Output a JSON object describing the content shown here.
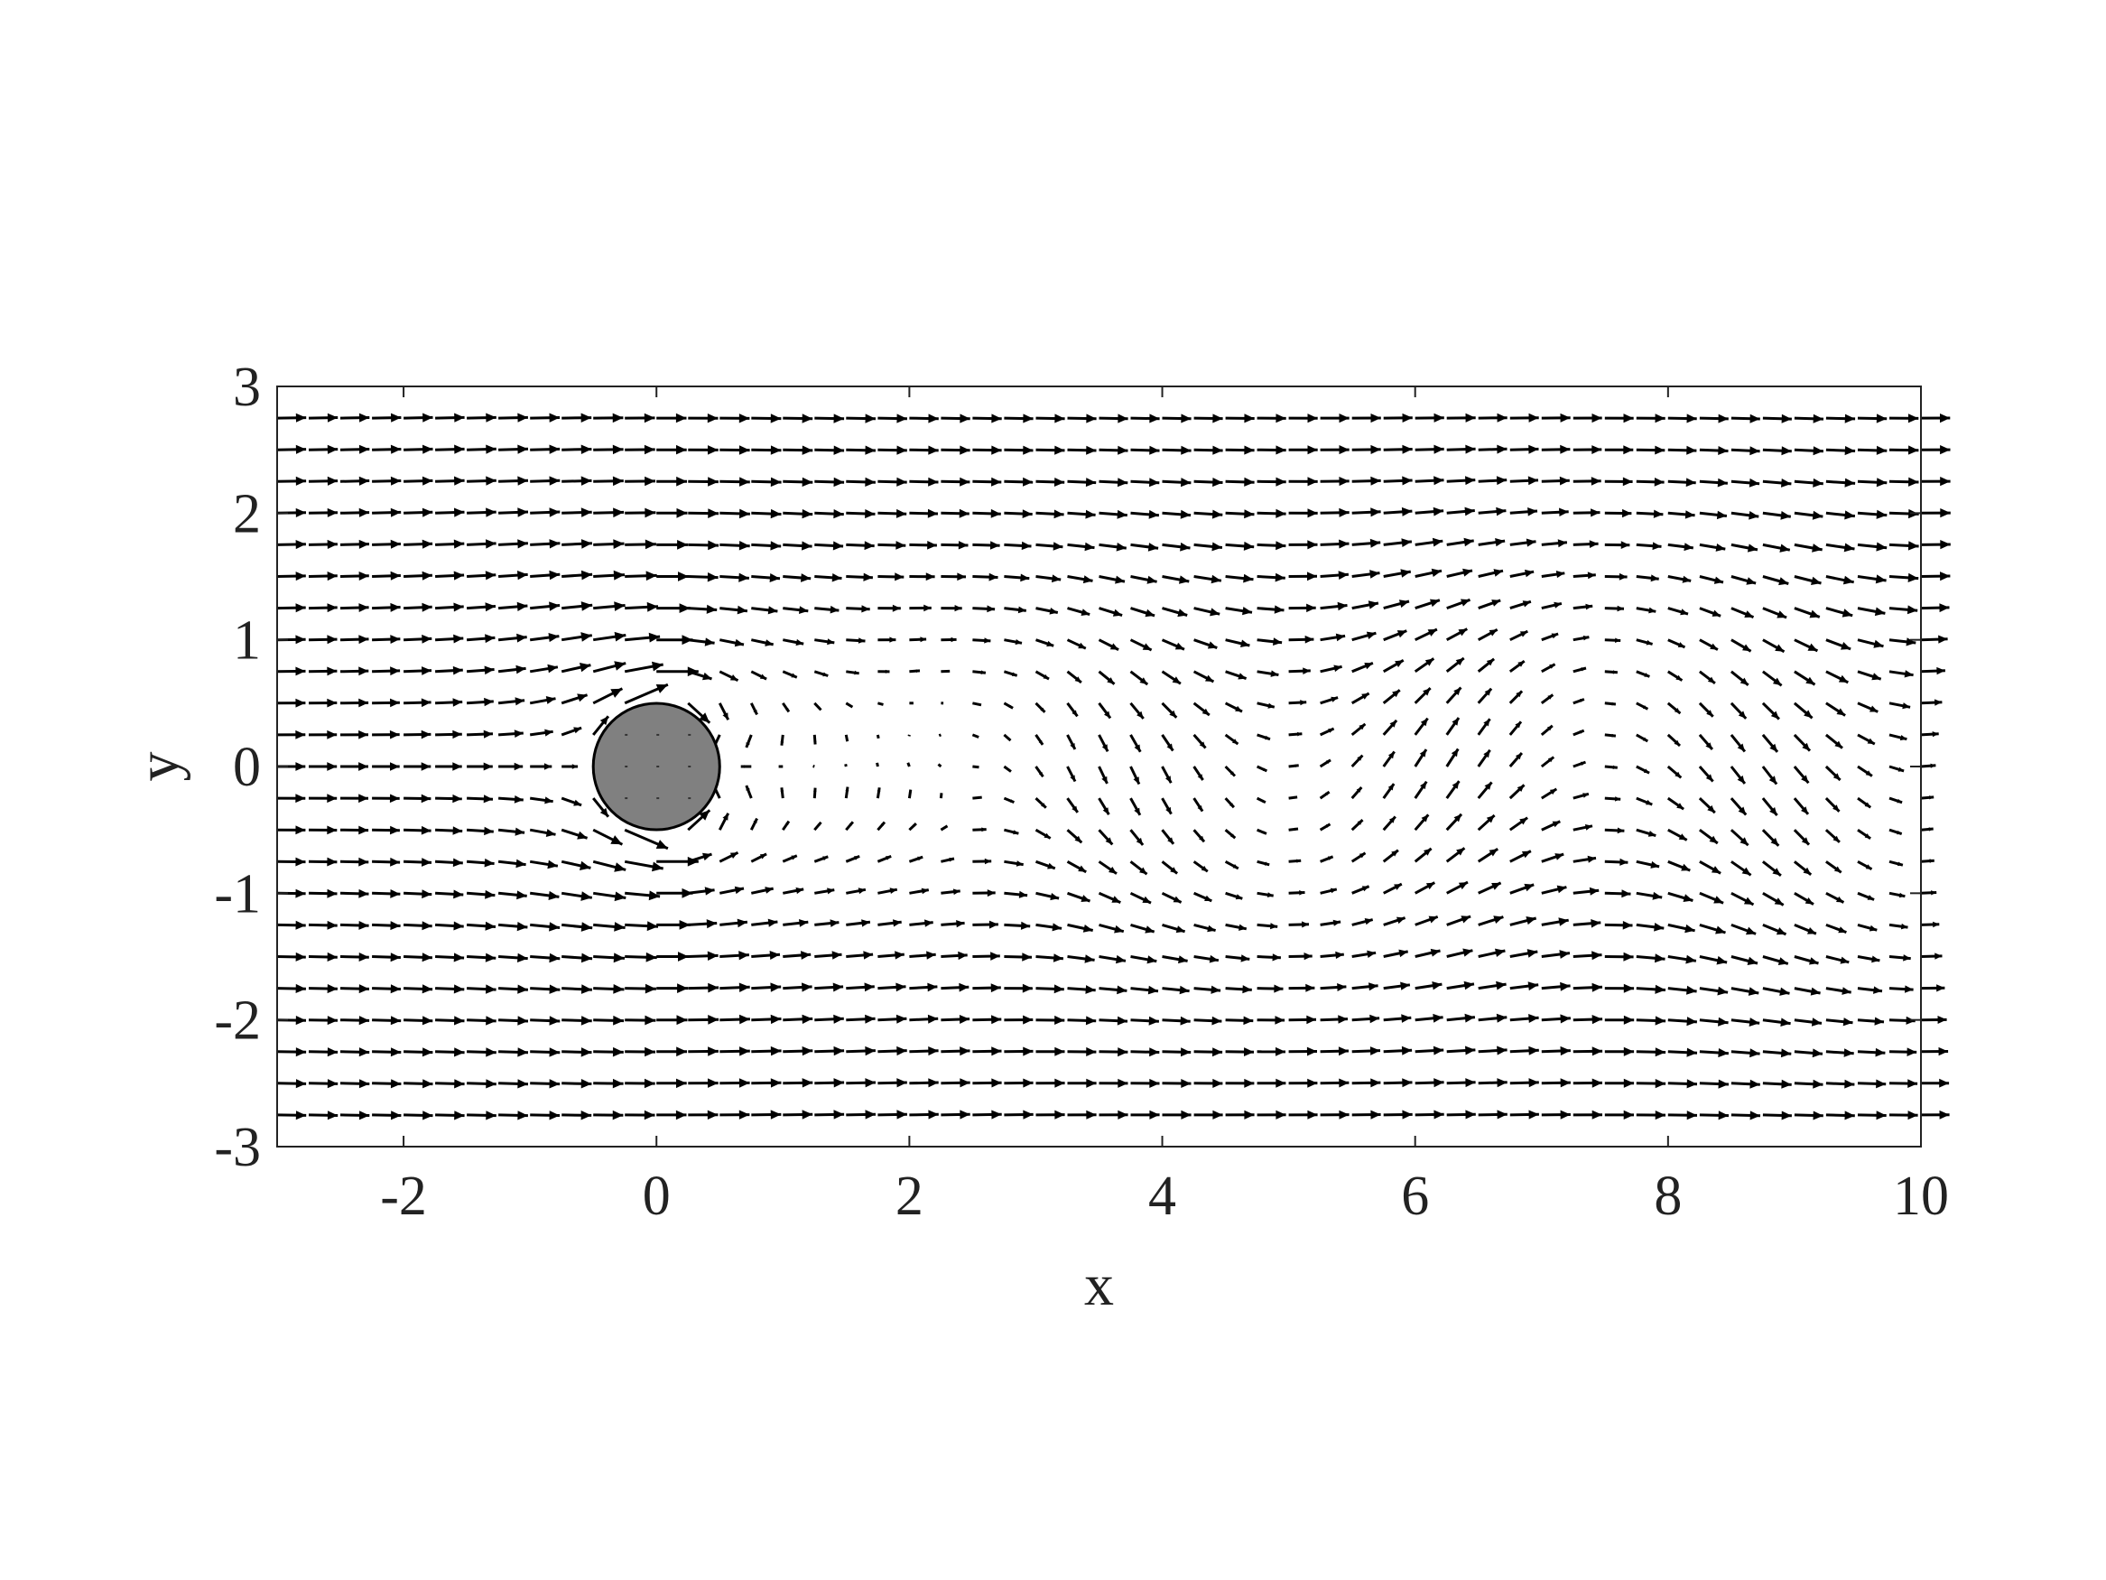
{
  "chart_data": {
    "type": "quiver",
    "title": "",
    "xlabel": "x",
    "ylabel": "y",
    "xlim": [
      -3,
      10
    ],
    "ylim": [
      -3,
      3
    ],
    "xticks": [
      -2,
      0,
      2,
      4,
      6,
      8,
      10
    ],
    "yticks": [
      -3,
      -2,
      -1,
      0,
      1,
      2,
      3
    ],
    "xtick_labels": [
      "-2",
      "0",
      "2",
      "4",
      "6",
      "8",
      "10"
    ],
    "ytick_labels": [
      "-3",
      "-2",
      "-1",
      "0",
      "1",
      "2",
      "3"
    ],
    "grid": false,
    "obstacle": {
      "shape": "circle",
      "center": [
        0,
        0
      ],
      "radius": 0.5,
      "fill_color": "#808080"
    },
    "vector_field": {
      "description_units": "data units",
      "x_spacing": 0.25,
      "y_spacing": 0.25,
      "x_range": [
        -3,
        10
      ],
      "y_range": [
        -2.75,
        2.75
      ],
      "freestream_u": 1.0,
      "wake": {
        "vortex_street_wavelength": 5.0,
        "wake_half_width": 0.9,
        "recirculation_length": 2.3
      },
      "arrow_color": "#000000"
    }
  }
}
